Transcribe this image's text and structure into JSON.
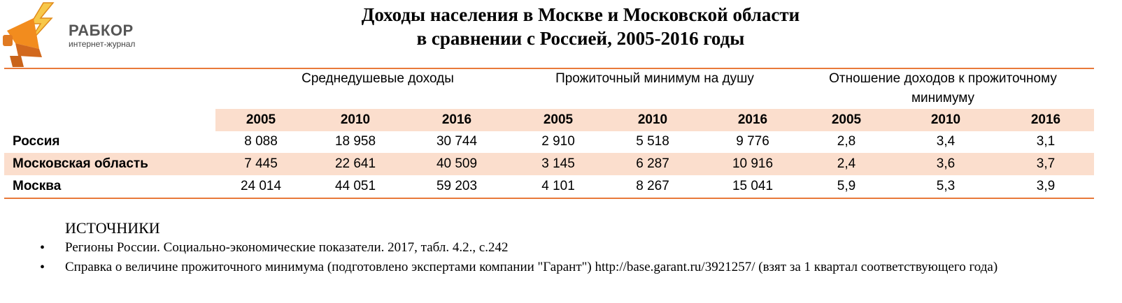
{
  "logo": {
    "name": "РАБКОР",
    "subtitle": "интернет-журнал"
  },
  "title": {
    "line1": "Доходы населения в Москве и Московской области",
    "line2": "в сравнении с Россией, 2005-2016 годы"
  },
  "table": {
    "groups": [
      "Среднедушевые доходы",
      "Прожиточный минимум на душу",
      "Отношение доходов к прожиточному минимуму"
    ],
    "years": [
      "2005",
      "2010",
      "2016",
      "2005",
      "2010",
      "2016",
      "2005",
      "2010",
      "2016"
    ],
    "rows": [
      {
        "label": "Россия",
        "values": [
          "8 088",
          "18 958",
          "30 744",
          "2 910",
          "5 518",
          "9 776",
          "2,8",
          "3,4",
          "3,1"
        ]
      },
      {
        "label": "Московская область",
        "values": [
          "7 445",
          "22 641",
          "40 509",
          "3 145",
          "6 287",
          "10 916",
          "2,4",
          "3,6",
          "3,7"
        ]
      },
      {
        "label": "Москва",
        "values": [
          "24 014",
          "44 051",
          "59 203",
          "4 101",
          "8 267",
          "15 041",
          "5,9",
          "5,3",
          "3,9"
        ]
      }
    ]
  },
  "sources": {
    "heading": "ИСТОЧНИКИ",
    "items": [
      "Регионы России. Социально-экономические показатели. 2017, табл. 4.2., с.242",
      "Справка о величине прожиточного минимума (подготовлено экспертами компании \"Гарант\") http://base.garant.ru/3921257/ (взят за 1 квартал соответствующего года)"
    ]
  },
  "colors": {
    "accent": "#e8793a",
    "band": "#fbdecd",
    "logo_orange": "#f28c1e",
    "logo_yellow": "#f7c84a"
  }
}
